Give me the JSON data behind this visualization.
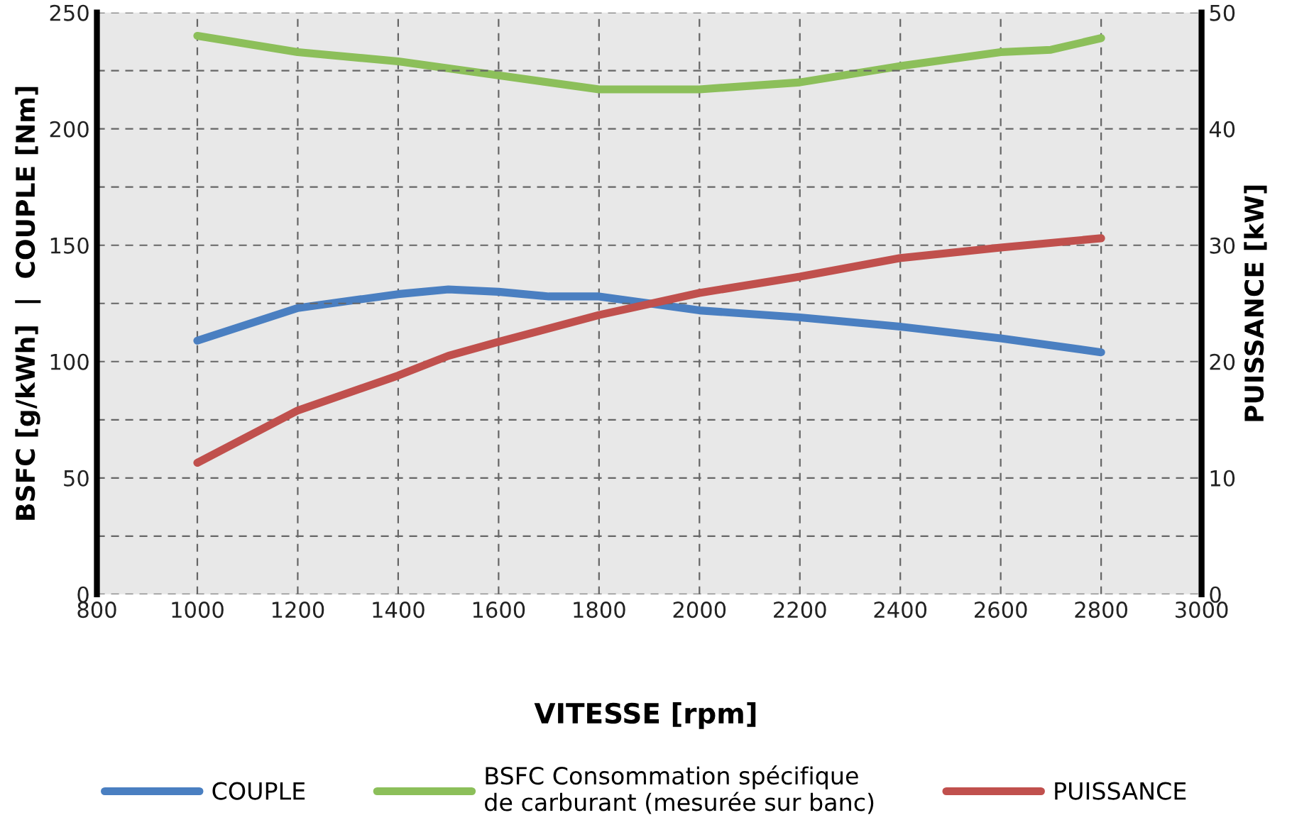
{
  "chart_data": {
    "type": "line",
    "xlabel": "VITESSE [rpm]",
    "ylabel": "BSFC [g/kWh]  |  COUPLE [Nm]",
    "y2label": "PUISSANCE [kW]",
    "xlim": [
      800,
      3000
    ],
    "xticks": [
      800,
      1000,
      1200,
      1400,
      1600,
      1800,
      2000,
      2200,
      2400,
      2600,
      2800,
      3000
    ],
    "ylim": [
      0,
      250
    ],
    "yticks": [
      0,
      50,
      100,
      150,
      200,
      250
    ],
    "y2lim": [
      0,
      50
    ],
    "y2ticks": [
      0,
      10,
      20,
      30,
      40,
      50
    ],
    "grid": true,
    "legend": "bottom",
    "line_style": "solid",
    "marker": "none",
    "series": [
      {
        "name": "COUPLE",
        "color": "#4a7fc1",
        "x": [
          1000,
          1200,
          1400,
          1500,
          1600,
          1700,
          1800,
          2000,
          2200,
          2400,
          2600,
          2800
        ],
        "values": [
          109,
          123,
          129,
          131,
          130,
          128,
          128,
          122,
          119,
          115,
          110,
          104
        ]
      },
      {
        "name": "BSFC Consommation spécifique\nde carburant (mesurée sur banc)",
        "color": "#8cbf5a",
        "x": [
          1000,
          1200,
          1400,
          1600,
          1800,
          1900,
          2000,
          2200,
          2400,
          2600,
          2700,
          2800
        ],
        "values": [
          240,
          233,
          229,
          223,
          217,
          217,
          217,
          220,
          227,
          233,
          234,
          239
        ]
      },
      {
        "name": "PUISSANCE",
        "color": "#c0504d",
        "axis": "y2",
        "x": [
          1000,
          1200,
          1400,
          1500,
          1600,
          1800,
          2000,
          2200,
          2400,
          2600,
          2800
        ],
        "values": [
          11.3,
          15.8,
          18.8,
          20.5,
          21.7,
          24,
          25.9,
          27.3,
          28.9,
          29.8,
          30.6
        ]
      }
    ]
  }
}
